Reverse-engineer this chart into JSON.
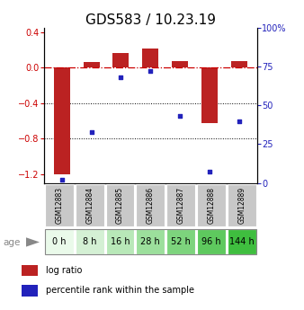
{
  "title": "GDS583 / 10.23.19",
  "categories": [
    "GSM12883",
    "GSM12884",
    "GSM12885",
    "GSM12886",
    "GSM12887",
    "GSM12888",
    "GSM12889"
  ],
  "age_labels": [
    "0 h",
    "8 h",
    "16 h",
    "28 h",
    "52 h",
    "96 h",
    "144 h"
  ],
  "log_ratio": [
    -1.2,
    0.07,
    0.17,
    0.22,
    0.08,
    -0.62,
    0.08
  ],
  "percentile_rank": [
    2,
    33,
    68,
    72,
    43,
    7,
    40
  ],
  "bar_color": "#bb2222",
  "dot_color": "#2222bb",
  "ylim_left": [
    -1.3,
    0.45
  ],
  "ylim_right": [
    0,
    100
  ],
  "yticks_left": [
    -1.2,
    -0.8,
    -0.4,
    0.0,
    0.4
  ],
  "yticks_right": [
    0,
    25,
    50,
    75,
    100
  ],
  "age_bg_colors": [
    "#eafaea",
    "#d4f0d4",
    "#b8e8b8",
    "#9cdf9c",
    "#7dd47d",
    "#5ec95e",
    "#3fbe3f"
  ],
  "gsm_bg_color": "#c8c8c8",
  "title_fontsize": 11,
  "tick_fontsize": 7,
  "label_fontsize": 7,
  "bar_width": 0.55,
  "zero_line_color": "#cc0000",
  "grid_color": "#000000"
}
